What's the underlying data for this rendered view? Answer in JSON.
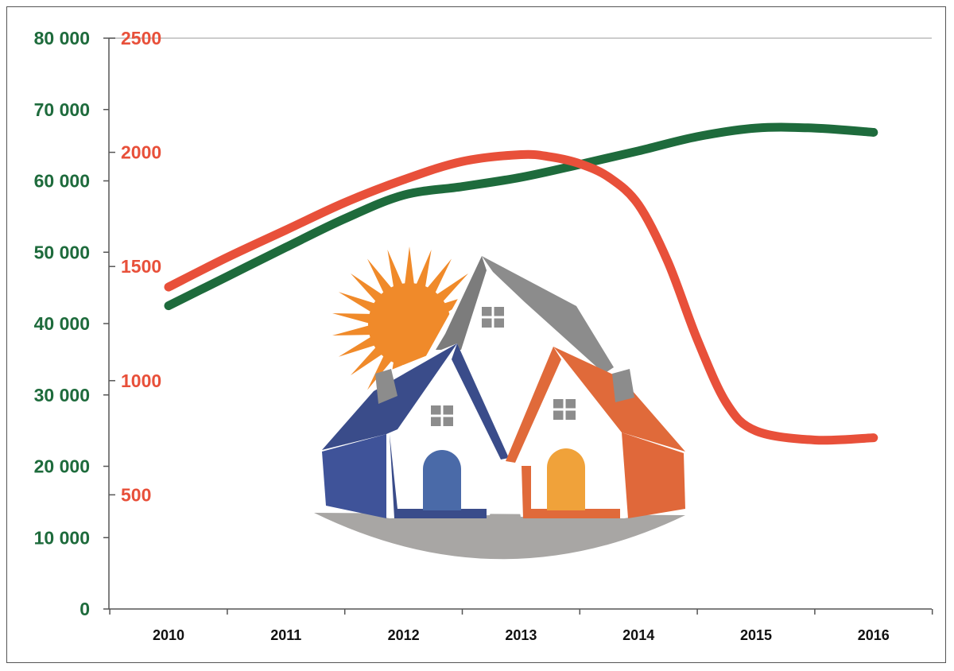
{
  "chart_data": {
    "type": "line",
    "title": "",
    "xlabel": "",
    "ylabel": "",
    "categories": [
      "2010",
      "2011",
      "2012",
      "2013",
      "2014",
      "2015",
      "2016"
    ],
    "y_left": {
      "range": [
        0,
        80000
      ],
      "ticks": [
        0,
        10000,
        20000,
        30000,
        40000,
        50000,
        60000,
        70000,
        80000
      ],
      "tick_labels": [
        "0",
        "10 000",
        "20 000",
        "30 000",
        "40 000",
        "50 000",
        "60 000",
        "70 000",
        "80 000"
      ]
    },
    "y_right": {
      "range": [
        0,
        2500
      ],
      "ticks": [
        500,
        1000,
        1500,
        2000,
        2500
      ],
      "tick_labels": [
        "500",
        "1000",
        "1500",
        "2000",
        "2500"
      ]
    },
    "series": [
      {
        "name": "green-series",
        "axis": "left",
        "x": [
          2010,
          2010.5,
          2011,
          2011.5,
          2012,
          2012.5,
          2013,
          2013.5,
          2014,
          2014.5,
          2015,
          2015.5,
          2016
        ],
        "values": [
          42500,
          46600,
          50700,
          54700,
          58000,
          59200,
          60500,
          62300,
          64200,
          66200,
          67400,
          67400,
          66800
        ],
        "color": "#1e6b3c"
      },
      {
        "name": "red-series",
        "axis": "right",
        "x": [
          2010,
          2010.5,
          2011,
          2011.5,
          2012,
          2012.5,
          2013,
          2013.25,
          2013.5,
          2013.75,
          2014,
          2014.25,
          2014.5,
          2014.75,
          2015,
          2015.5,
          2016
        ],
        "values": [
          1410,
          1540,
          1660,
          1780,
          1880,
          1960,
          1990,
          1980,
          1950,
          1890,
          1770,
          1520,
          1180,
          900,
          780,
          740,
          750
        ],
        "color": "#e8503a"
      }
    ],
    "colors": {
      "left_axis_text": "#1e6b3c",
      "right_axis_text": "#e8503a",
      "axis_line": "#555555",
      "gridline": "#bbbbbb"
    },
    "grid": false,
    "legend": "none"
  },
  "illustration": {
    "name": "houses-with-sun-icon",
    "colors": {
      "sun": "#f08a2a",
      "roof_blue": "#3a4c8a",
      "roof_orange": "#e06a3a",
      "roof_gray": "#8c8c8c",
      "wall_blue": "#3f5399",
      "wall_orange": "#e0683a",
      "door_blue": "#4a6aa8",
      "door_orange": "#f0a23a",
      "ground": "#a8a6a4"
    }
  }
}
